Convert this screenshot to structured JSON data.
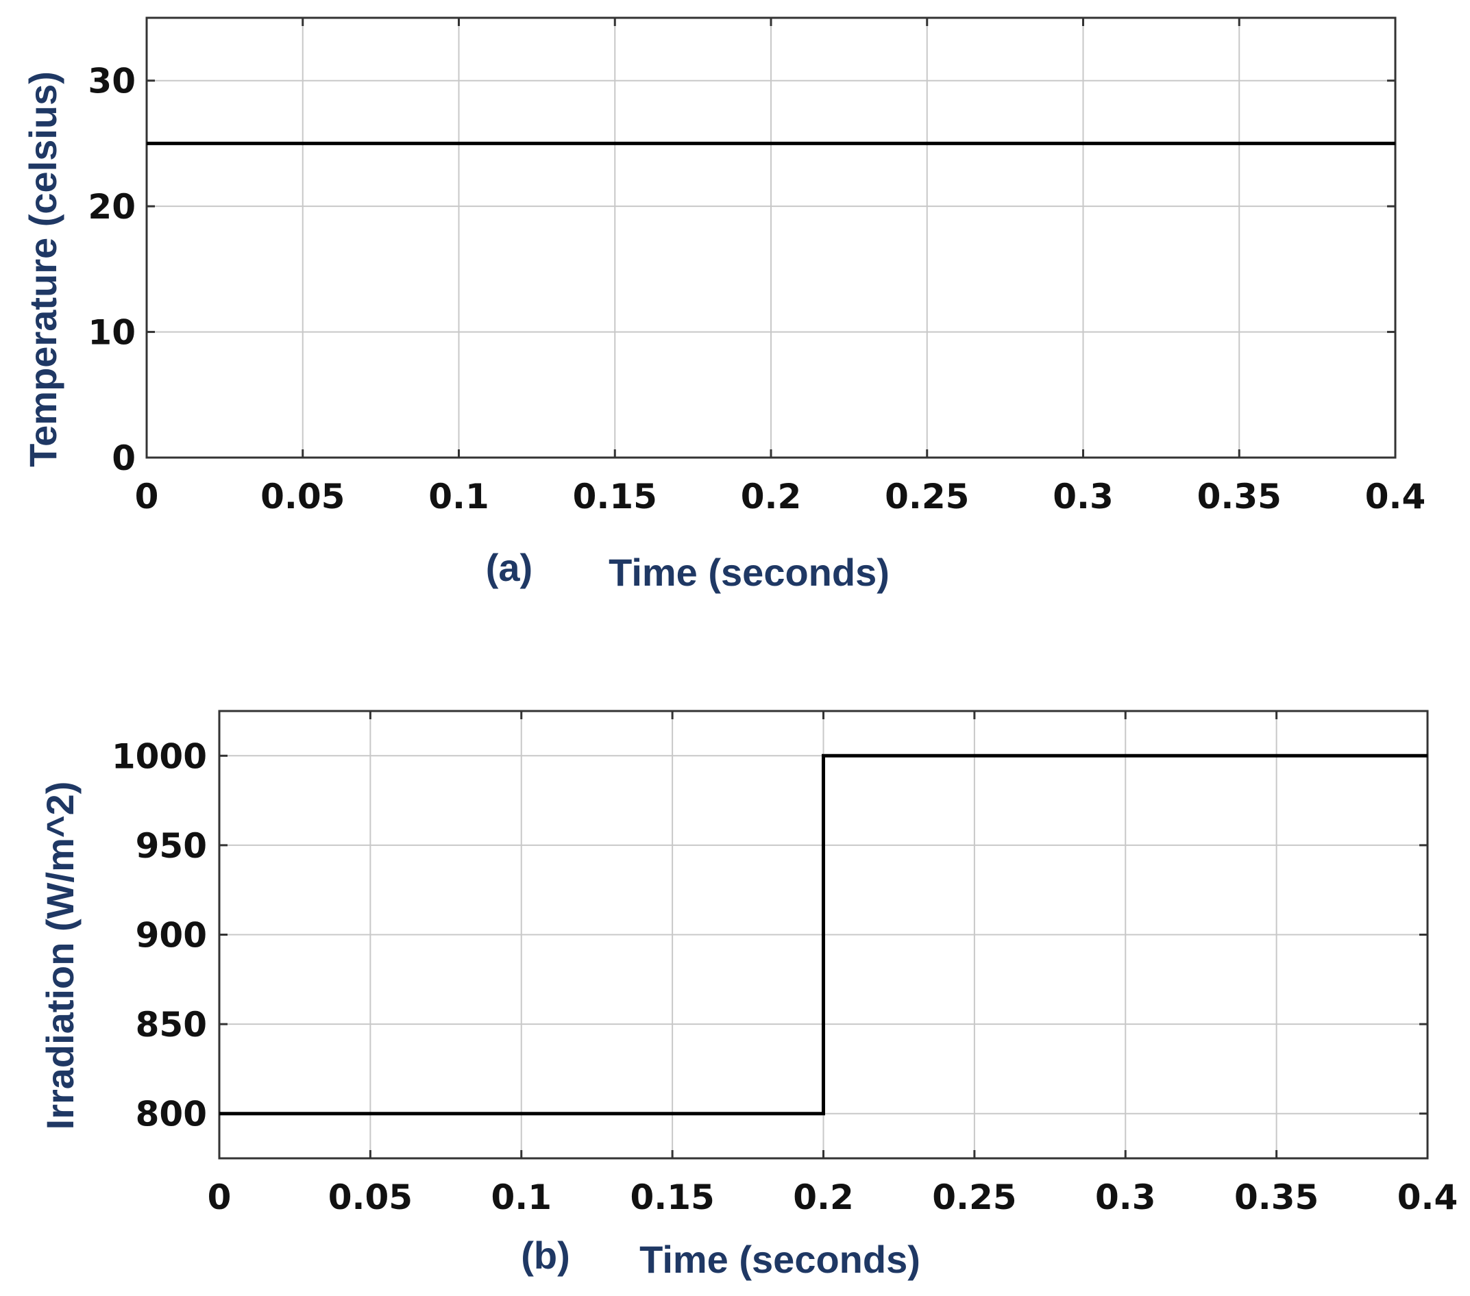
{
  "colors": {
    "label": "#1f3864",
    "series": "#000000",
    "grid": "#c8c8c8",
    "axis": "#333333"
  },
  "chart_data": [
    {
      "type": "line",
      "panel_label": "(a)",
      "xlabel": "Time (seconds)",
      "ylabel": "Temperature (celsius)",
      "xlim": [
        0,
        0.4
      ],
      "ylim": [
        0,
        35
      ],
      "xticks": [
        0,
        0.05,
        0.1,
        0.15,
        0.2,
        0.25,
        0.3,
        0.35,
        0.4
      ],
      "xtick_labels": [
        "0",
        "0.05",
        "0.1",
        "0.15",
        "0.2",
        "0.25",
        "0.3",
        "0.35",
        "0.4"
      ],
      "yticks": [
        0,
        10,
        20,
        30
      ],
      "ytick_labels": [
        "0",
        "10",
        "20",
        "30"
      ],
      "grid": true,
      "series": [
        {
          "x": [
            0,
            0.4
          ],
          "y": [
            25,
            25
          ]
        }
      ]
    },
    {
      "type": "line",
      "panel_label": "(b)",
      "xlabel": "Time (seconds)",
      "ylabel": "Irradiation (W/m^2)",
      "xlim": [
        0,
        0.4
      ],
      "ylim": [
        775,
        1025
      ],
      "xticks": [
        0,
        0.05,
        0.1,
        0.15,
        0.2,
        0.25,
        0.3,
        0.35,
        0.4
      ],
      "xtick_labels": [
        "0",
        "0.05",
        "0.1",
        "0.15",
        "0.2",
        "0.25",
        "0.3",
        "0.35",
        "0.4"
      ],
      "yticks": [
        800,
        850,
        900,
        950,
        1000
      ],
      "ytick_labels": [
        "800",
        "850",
        "900",
        "950",
        "1000"
      ],
      "grid": true,
      "series": [
        {
          "x": [
            0,
            0.2,
            0.2,
            0.4
          ],
          "y": [
            800,
            800,
            1000,
            1000
          ]
        }
      ]
    }
  ]
}
